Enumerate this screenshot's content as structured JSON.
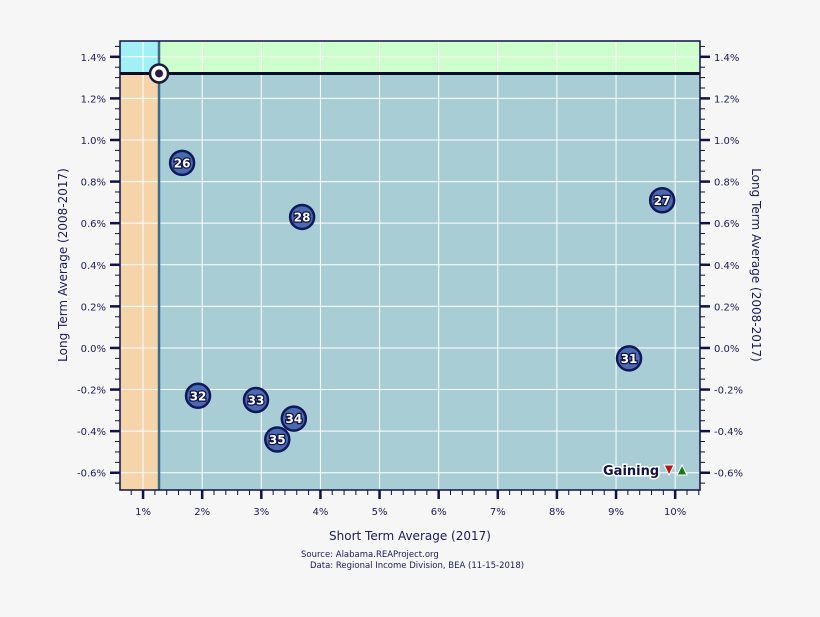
{
  "chart_data": {
    "type": "scatter",
    "xlabel": "Short Term Average (2017)",
    "ylabel": "Long Term Average (2008-2017)",
    "ylabel_right": "Long Term Average (2008-2017)",
    "xlim": [
      0.61,
      10.42
    ],
    "ylim": [
      -0.683,
      1.476
    ],
    "x_ticks": [
      1,
      2,
      3,
      4,
      5,
      6,
      7,
      8,
      9,
      10
    ],
    "x_tick_labels": [
      "1%",
      "2%",
      "3%",
      "4%",
      "5%",
      "6%",
      "7%",
      "8%",
      "9%",
      "10%"
    ],
    "y_ticks": [
      1.4,
      1.2,
      1.0,
      0.8,
      0.6,
      0.4,
      0.2,
      0.0,
      -0.2,
      -0.4,
      -0.6
    ],
    "y_tick_labels": [
      "1.4%",
      "1.2%",
      "1.0%",
      "0.8%",
      "0.6%",
      "0.4%",
      "0.2%",
      "0.0%",
      "-0.2%",
      "-0.4%",
      "-0.6%"
    ],
    "grid": true,
    "reference": {
      "x": 1.27,
      "y": 1.32
    },
    "quadrant_colors": {
      "top_left": "#a0f0f6",
      "top_right": "#ccffcc",
      "bottom_left": "#f4d4a8",
      "bottom_right": "#a9cdd4"
    },
    "points": [
      {
        "label": "26",
        "x": 1.66,
        "y": 0.89
      },
      {
        "label": "28",
        "x": 3.69,
        "y": 0.63
      },
      {
        "label": "27",
        "x": 9.78,
        "y": 0.71
      },
      {
        "label": "31",
        "x": 9.22,
        "y": -0.05
      },
      {
        "label": "32",
        "x": 1.93,
        "y": -0.23
      },
      {
        "label": "33",
        "x": 2.91,
        "y": -0.25
      },
      {
        "label": "34",
        "x": 3.55,
        "y": -0.34
      },
      {
        "label": "35",
        "x": 3.27,
        "y": -0.44
      }
    ],
    "legend": {
      "label": "Gaining",
      "position": "bottom-right"
    },
    "source_line1": "Source: Alabama.REAProject.org",
    "source_line2": "Data: Regional Income Division, BEA (11-15-2018)"
  }
}
